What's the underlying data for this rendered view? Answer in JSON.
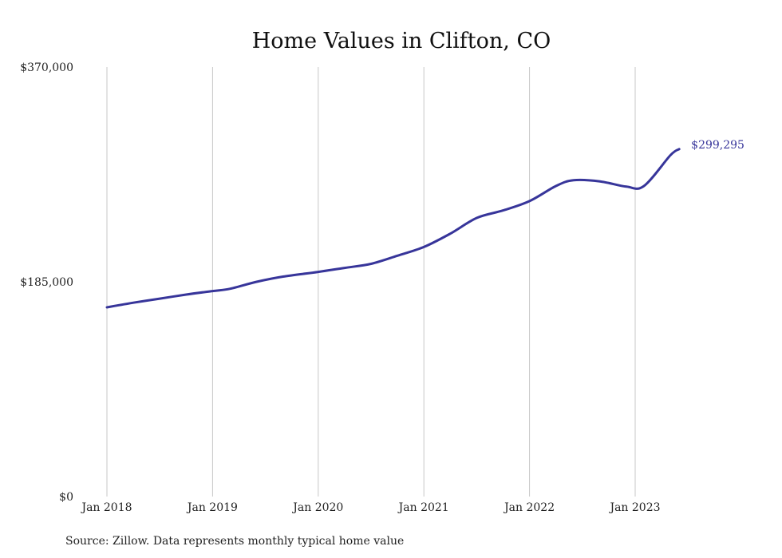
{
  "chart_data": {
    "type": "line",
    "title": "Home Values in Clifton, CO",
    "source": "Source: Zillow. Data represents monthly typical home value",
    "ylim": [
      0,
      370000
    ],
    "y_ticks": [
      {
        "value": 0,
        "label": "$0"
      },
      {
        "value": 185000,
        "label": "$185,000"
      },
      {
        "value": 370000,
        "label": "$370,000"
      }
    ],
    "x_ticks": [
      {
        "value": "2018-01",
        "label": "Jan 2018"
      },
      {
        "value": "2019-01",
        "label": "Jan 2019"
      },
      {
        "value": "2020-01",
        "label": "Jan 2020"
      },
      {
        "value": "2021-01",
        "label": "Jan 2021"
      },
      {
        "value": "2022-01",
        "label": "Jan 2022"
      },
      {
        "value": "2023-01",
        "label": "Jan 2023"
      }
    ],
    "grid": "vertical",
    "line_color": "#37359a",
    "series": [
      {
        "points": [
          {
            "x": "2018-01",
            "y": 163000
          },
          {
            "x": "2018-04",
            "y": 167000
          },
          {
            "x": "2018-07",
            "y": 170500
          },
          {
            "x": "2018-10",
            "y": 174000
          },
          {
            "x": "2019-01",
            "y": 177000
          },
          {
            "x": "2019-03",
            "y": 179000
          },
          {
            "x": "2019-06",
            "y": 185000
          },
          {
            "x": "2019-09",
            "y": 189500
          },
          {
            "x": "2020-01",
            "y": 193500
          },
          {
            "x": "2020-04",
            "y": 197000
          },
          {
            "x": "2020-07",
            "y": 200500
          },
          {
            "x": "2020-10",
            "y": 207500
          },
          {
            "x": "2021-01",
            "y": 215000
          },
          {
            "x": "2021-04",
            "y": 226500
          },
          {
            "x": "2021-07",
            "y": 240000
          },
          {
            "x": "2021-10",
            "y": 246500
          },
          {
            "x": "2022-01",
            "y": 254500
          },
          {
            "x": "2022-04",
            "y": 267500
          },
          {
            "x": "2022-06",
            "y": 272500
          },
          {
            "x": "2022-09",
            "y": 271500
          },
          {
            "x": "2022-12",
            "y": 267000
          },
          {
            "x": "2023-02",
            "y": 267500
          },
          {
            "x": "2023-05",
            "y": 294000
          },
          {
            "x": "2023-06",
            "y": 299295
          }
        ]
      }
    ],
    "end_label": "$299,295"
  }
}
